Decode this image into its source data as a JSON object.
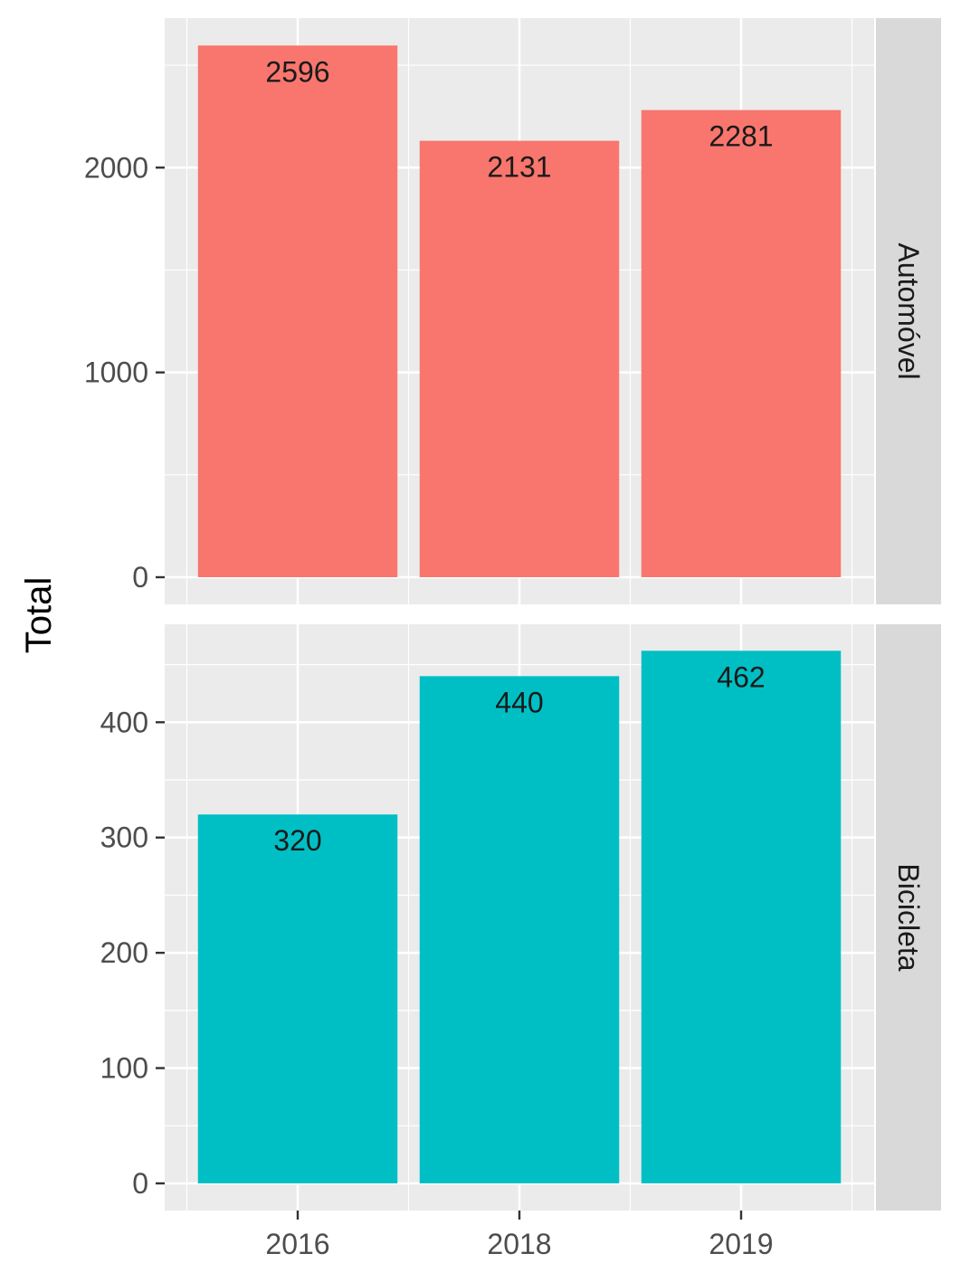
{
  "chart_data": {
    "type": "bar",
    "title": "",
    "xlabel": "",
    "ylabel": "Total",
    "categories": [
      "2016",
      "2018",
      "2019"
    ],
    "facets": [
      {
        "name": "Automóvel",
        "color": "#F8766D",
        "values": [
          2596,
          2131,
          2281
        ],
        "ylim": [
          0,
          2730
        ],
        "yticks": [
          0,
          1000,
          2000
        ]
      },
      {
        "name": "Bicicleta",
        "color": "#00BFC4",
        "values": [
          320,
          440,
          462
        ],
        "ylim": [
          0,
          485
        ],
        "yticks": [
          0,
          100,
          200,
          300,
          400
        ]
      }
    ],
    "grid": true,
    "legend": "none"
  }
}
